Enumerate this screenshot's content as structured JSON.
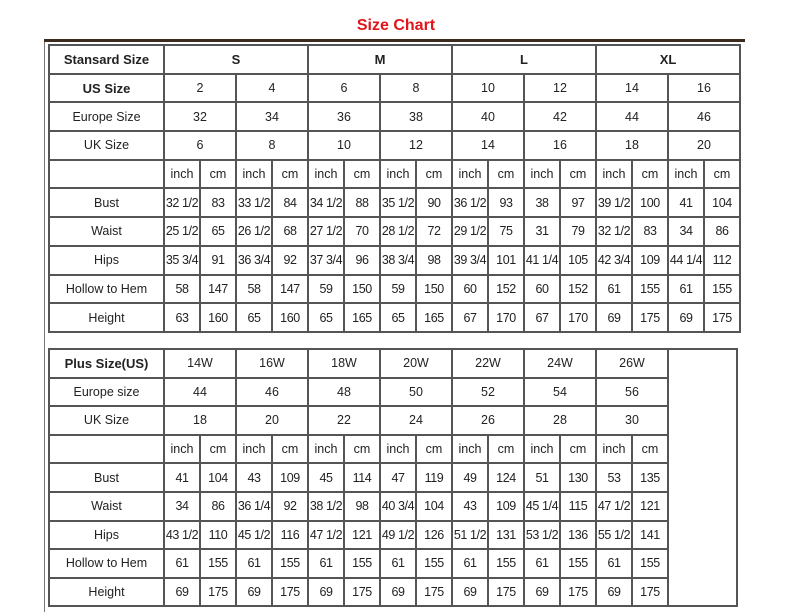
{
  "title": "Size Chart",
  "standard": {
    "header_label": "Stansard Size",
    "groups": [
      "S",
      "M",
      "L",
      "XL"
    ],
    "us_label": "US Size",
    "us": [
      "2",
      "4",
      "6",
      "8",
      "10",
      "12",
      "14",
      "16"
    ],
    "europe_label": "Europe Size",
    "europe": [
      "32",
      "34",
      "36",
      "38",
      "40",
      "42",
      "44",
      "46"
    ],
    "uk_label": "UK Size",
    "uk": [
      "6",
      "8",
      "10",
      "12",
      "14",
      "16",
      "18",
      "20"
    ],
    "units": [
      "inch",
      "cm"
    ],
    "rows": [
      {
        "label": "Bust",
        "values": [
          "32 1/2",
          "83",
          "33 1/2",
          "84",
          "34 1/2",
          "88",
          "35 1/2",
          "90",
          "36 1/2",
          "93",
          "38",
          "97",
          "39 1/2",
          "100",
          "41",
          "104"
        ]
      },
      {
        "label": "Waist",
        "values": [
          "25 1/2",
          "65",
          "26 1/2",
          "68",
          "27 1/2",
          "70",
          "28 1/2",
          "72",
          "29 1/2",
          "75",
          "31",
          "79",
          "32 1/2",
          "83",
          "34",
          "86"
        ]
      },
      {
        "label": "Hips",
        "values": [
          "35 3/4",
          "91",
          "36 3/4",
          "92",
          "37 3/4",
          "96",
          "38 3/4",
          "98",
          "39 3/4",
          "101",
          "41 1/4",
          "105",
          "42 3/4",
          "109",
          "44 1/4",
          "112"
        ]
      },
      {
        "label": "Hollow to Hem",
        "values": [
          "58",
          "147",
          "58",
          "147",
          "59",
          "150",
          "59",
          "150",
          "60",
          "152",
          "60",
          "152",
          "61",
          "155",
          "61",
          "155"
        ]
      },
      {
        "label": "Height",
        "values": [
          "63",
          "160",
          "65",
          "160",
          "65",
          "165",
          "65",
          "165",
          "67",
          "170",
          "67",
          "170",
          "69",
          "175",
          "69",
          "175"
        ]
      }
    ]
  },
  "plus": {
    "header_label": "Plus Size(US)",
    "sizes": [
      "14W",
      "16W",
      "18W",
      "20W",
      "22W",
      "24W",
      "26W"
    ],
    "europe_label": "Europe size",
    "europe": [
      "44",
      "46",
      "48",
      "50",
      "52",
      "54",
      "56"
    ],
    "uk_label": "UK Size",
    "uk": [
      "18",
      "20",
      "22",
      "24",
      "26",
      "28",
      "30"
    ],
    "units": [
      "inch",
      "cm"
    ],
    "rows": [
      {
        "label": "Bust",
        "values": [
          "41",
          "104",
          "43",
          "109",
          "45",
          "114",
          "47",
          "119",
          "49",
          "124",
          "51",
          "130",
          "53",
          "135"
        ]
      },
      {
        "label": "Waist",
        "values": [
          "34",
          "86",
          "36 1/4",
          "92",
          "38 1/2",
          "98",
          "40 3/4",
          "104",
          "43",
          "109",
          "45 1/4",
          "115",
          "47 1/2",
          "121"
        ]
      },
      {
        "label": "Hips",
        "values": [
          "43 1/2",
          "110",
          "45 1/2",
          "116",
          "47 1/2",
          "121",
          "49 1/2",
          "126",
          "51 1/2",
          "131",
          "53 1/2",
          "136",
          "55 1/2",
          "141"
        ]
      },
      {
        "label": "Hollow to Hem",
        "values": [
          "61",
          "155",
          "61",
          "155",
          "61",
          "155",
          "61",
          "155",
          "61",
          "155",
          "61",
          "155",
          "61",
          "155"
        ]
      },
      {
        "label": "Height",
        "values": [
          "69",
          "175",
          "69",
          "175",
          "69",
          "175",
          "69",
          "175",
          "69",
          "175",
          "69",
          "175",
          "69",
          "175"
        ]
      }
    ]
  }
}
